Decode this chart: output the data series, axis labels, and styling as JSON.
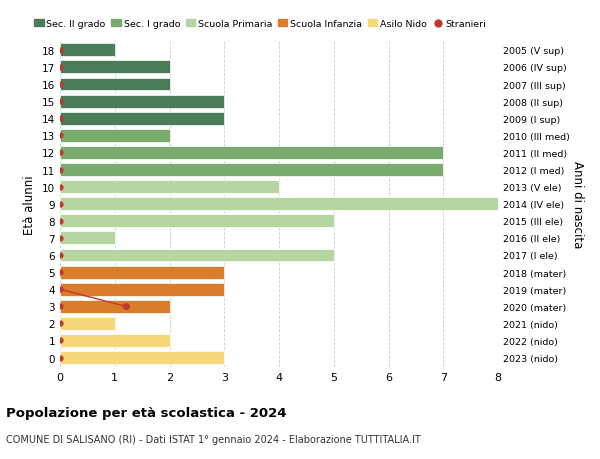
{
  "ages": [
    18,
    17,
    16,
    15,
    14,
    13,
    12,
    11,
    10,
    9,
    8,
    7,
    6,
    5,
    4,
    3,
    2,
    1,
    0
  ],
  "right_labels": [
    "2005 (V sup)",
    "2006 (IV sup)",
    "2007 (III sup)",
    "2008 (II sup)",
    "2009 (I sup)",
    "2010 (III med)",
    "2011 (II med)",
    "2012 (I med)",
    "2013 (V ele)",
    "2014 (IV ele)",
    "2015 (III ele)",
    "2016 (II ele)",
    "2017 (I ele)",
    "2018 (mater)",
    "2019 (mater)",
    "2020 (mater)",
    "2021 (nido)",
    "2022 (nido)",
    "2023 (nido)"
  ],
  "bar_values": [
    1,
    2,
    2,
    3,
    3,
    2,
    7,
    7,
    4,
    8,
    5,
    1,
    5,
    3,
    3,
    2,
    1,
    2,
    3
  ],
  "category_colors": [
    "#4a7c59",
    "#4a7c59",
    "#4a7c59",
    "#4a7c59",
    "#4a7c59",
    "#7aab6e",
    "#7aab6e",
    "#7aab6e",
    "#b5d6a0",
    "#b5d6a0",
    "#b5d6a0",
    "#b5d6a0",
    "#b5d6a0",
    "#d97c2b",
    "#d97c2b",
    "#d97c2b",
    "#f5d87a",
    "#f5d87a",
    "#f5d87a"
  ],
  "stranieri_dot_color": "#c0392b",
  "stranieri_line_color": "#c0392b",
  "stranieri_line_x": [
    0,
    1.2
  ],
  "stranieri_line_y": [
    4,
    3
  ],
  "stranieri_special_x": 1.2,
  "stranieri_special_y": 3,
  "xlim": [
    0,
    8
  ],
  "ylim": [
    -0.55,
    18.55
  ],
  "title": "Popolazione per età scolastica - 2024",
  "subtitle": "COMUNE DI SALISANO (RI) - Dati ISTAT 1° gennaio 2024 - Elaborazione TUTTITALIA.IT",
  "ylabel": "Età alunni",
  "right_ylabel": "Anni di nascita",
  "legend_items": [
    {
      "label": "Sec. II grado",
      "color": "#4a7c59",
      "type": "patch"
    },
    {
      "label": "Sec. I grado",
      "color": "#7aab6e",
      "type": "patch"
    },
    {
      "label": "Scuola Primaria",
      "color": "#b5d6a0",
      "type": "patch"
    },
    {
      "label": "Scuola Infanzia",
      "color": "#d97c2b",
      "type": "patch"
    },
    {
      "label": "Asilo Nido",
      "color": "#f5d87a",
      "type": "patch"
    },
    {
      "label": "Stranieri",
      "color": "#c0392b",
      "type": "dot"
    }
  ],
  "background_color": "#ffffff",
  "grid_color": "#cccccc",
  "bar_height": 0.75,
  "bar_edgecolor": "white",
  "bar_linewidth": 0.5
}
